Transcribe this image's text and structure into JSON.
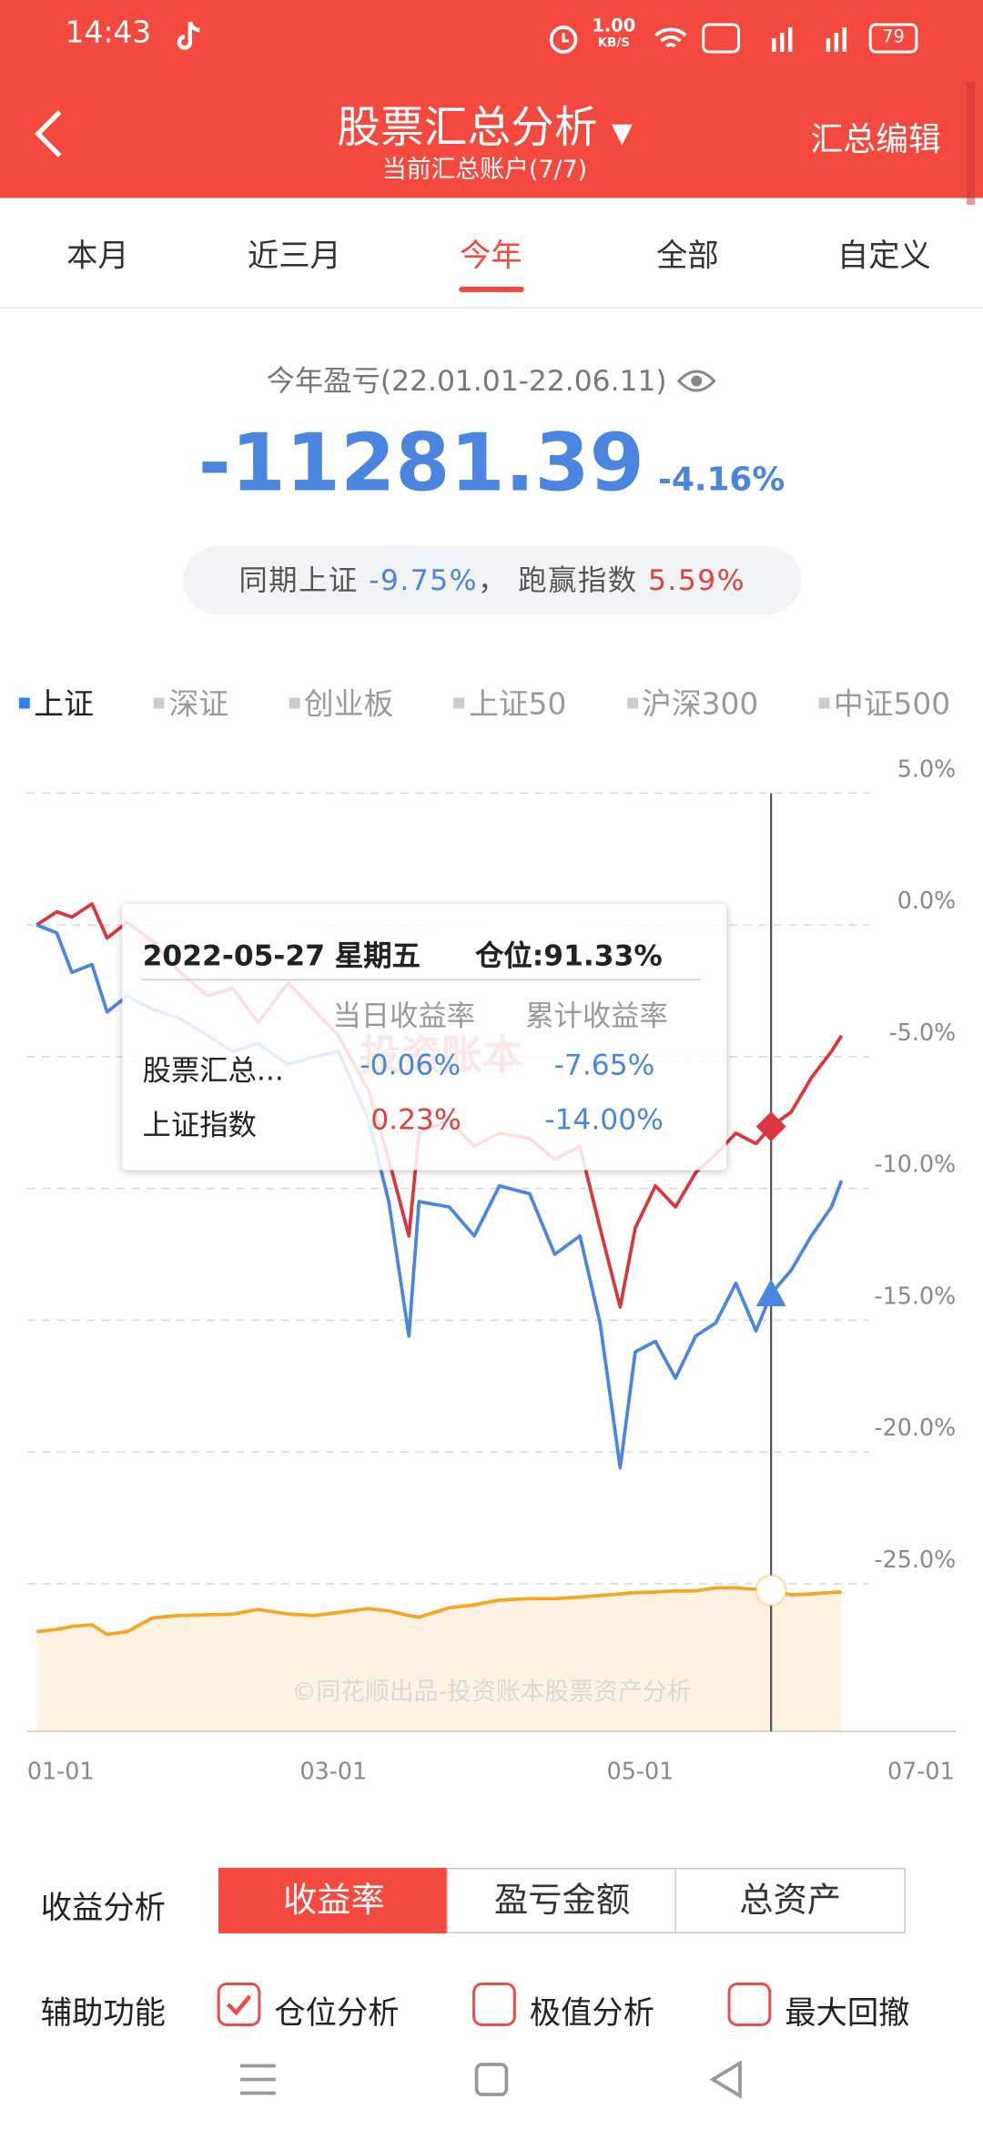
{
  "status_bar": {
    "time": "14:43",
    "speed_value": "1.00",
    "speed_unit": "KB/S",
    "battery": "79"
  },
  "header": {
    "title": "股票汇总分析",
    "subtitle": "当前汇总账户(7/7)",
    "action": "汇总编辑"
  },
  "tabs": [
    "本月",
    "近三月",
    "今年",
    "全部",
    "自定义"
  ],
  "active_tab": 2,
  "summary": {
    "period": "今年盈亏(22.01.01-22.06.11)",
    "profit": "-11281.39",
    "profit_rate": "-4.16%",
    "compare_label": "同期上证",
    "compare_value": "-9.75%",
    "separator": "，",
    "beat_label": "跑赢指数",
    "beat_value": "5.59%"
  },
  "index_tabs": [
    "上证",
    "深证",
    "创业板",
    "上证50",
    "沪深300",
    "中证500"
  ],
  "active_index_tab": 0,
  "chart_data": {
    "type": "line",
    "x": [
      0,
      4,
      7,
      11,
      14,
      18,
      23,
      28,
      34,
      39,
      44,
      50,
      55,
      60,
      66,
      70,
      74,
      76,
      82,
      87,
      92,
      98,
      103,
      108,
      112,
      116,
      119,
      123,
      127,
      131,
      135,
      139,
      143,
      146,
      150,
      154,
      158,
      160
    ],
    "xlim": [
      0,
      181
    ],
    "xticks": [
      {
        "value": 0,
        "label": "01-01"
      },
      {
        "value": 59,
        "label": "03-01"
      },
      {
        "value": 120,
        "label": "05-01"
      },
      {
        "value": 181,
        "label": "07-01"
      }
    ],
    "ylim": [
      -30.6,
      6.5
    ],
    "yticks": [
      {
        "value": 5,
        "label": "5.0%"
      },
      {
        "value": 0,
        "label": "0.0%"
      },
      {
        "value": -5,
        "label": "-5.0%"
      },
      {
        "value": -10,
        "label": "-10.0%"
      },
      {
        "value": -15,
        "label": "-15.0%"
      },
      {
        "value": -20,
        "label": "-20.0%"
      },
      {
        "value": -25,
        "label": "-25.0%"
      }
    ],
    "y2lim": [
      0,
      100
    ],
    "grid": true,
    "selected_index": 33,
    "series": [
      {
        "name": "股票汇总...",
        "color": "#d9363e",
        "marker": "diamond",
        "values": [
          0,
          0.5,
          0.3,
          0.8,
          -0.5,
          0.1,
          -0.6,
          -1.7,
          -2.7,
          -2.4,
          -3.7,
          -2.2,
          -3.2,
          -4.2,
          -6.3,
          -8.9,
          -11.8,
          -7.9,
          -7.4,
          -8.4,
          -7.9,
          -8.1,
          -8.9,
          -8.4,
          -11.5,
          -14.5,
          -11.5,
          -9.9,
          -10.7,
          -9.4,
          -8.7,
          -7.9,
          -8.3,
          -7.65,
          -7.1,
          -5.8,
          -4.8,
          -4.2
        ]
      },
      {
        "name": "上证指数",
        "color": "#4a86e0",
        "marker": "triangle",
        "values": [
          0,
          -0.3,
          -1.8,
          -1.5,
          -3.3,
          -2.7,
          -3.2,
          -3.5,
          -4.2,
          -4.8,
          -4.5,
          -5.3,
          -5.0,
          -4.8,
          -7.4,
          -10.5,
          -15.6,
          -10.5,
          -10.7,
          -11.8,
          -9.9,
          -10.2,
          -12.5,
          -11.8,
          -15.1,
          -20.6,
          -16.2,
          -15.8,
          -17.2,
          -15.6,
          -15.1,
          -13.6,
          -15.4,
          -14.0,
          -13.1,
          -11.8,
          -10.7,
          -9.7
        ]
      }
    ],
    "position_area": {
      "color": "#f5a623",
      "axis": "y2",
      "marker": "circle",
      "values": [
        64.6,
        66,
        68,
        69,
        62.8,
        64.6,
        73.5,
        75,
        75.5,
        76,
        79,
        76,
        75,
        77,
        79.6,
        78,
        75,
        74,
        80,
        82,
        85,
        86,
        86,
        87,
        88,
        89,
        90,
        90.3,
        91,
        91,
        93,
        93,
        92,
        91.33,
        88.5,
        89,
        90,
        90.3
      ]
    },
    "watermark": "©同花顺出品-投资账本股票资产分析"
  },
  "tooltip": {
    "date": "2022-05-27 星期五",
    "position": "仓位:91.33%",
    "watermark": "投资账本",
    "headers": [
      "当日收益率",
      "累计收益率"
    ],
    "rows": [
      {
        "daily": "-0.06%",
        "cumulative": "-7.65%"
      },
      {
        "daily": "0.23%",
        "cumulative": "-14.00%"
      }
    ]
  },
  "analysis": {
    "label": "收益分析",
    "options": [
      "收益率",
      "盈亏金额",
      "总资产"
    ],
    "active": 0
  },
  "auxiliary": {
    "label": "辅助功能",
    "options": [
      {
        "label": "仓位分析",
        "checked": true
      },
      {
        "label": "极值分析",
        "checked": false
      },
      {
        "label": "最大回撤",
        "checked": false
      }
    ]
  }
}
